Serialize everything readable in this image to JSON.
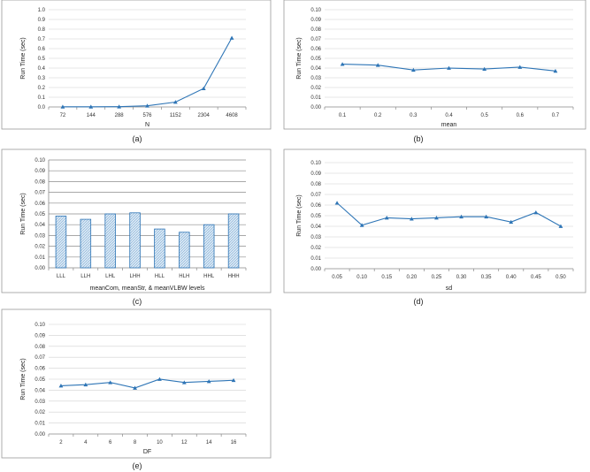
{
  "chart_data": [
    {
      "id": "a",
      "type": "line",
      "caption": "(a)",
      "categories": [
        "72",
        "144",
        "288",
        "576",
        "1152",
        "2304",
        "4608"
      ],
      "values": [
        0.002,
        0.002,
        0.003,
        0.012,
        0.05,
        0.19,
        0.71
      ],
      "xlabel": "N",
      "ylabel": "Run Time (sec)",
      "ylim": [
        0,
        1.0
      ],
      "yticks": [
        "0.0",
        "0.1",
        "0.2",
        "0.3",
        "0.4",
        "0.5",
        "0.6",
        "0.7",
        "0.8",
        "0.9",
        "1.0"
      ],
      "grid": true,
      "marker": "triangle",
      "color": "#2e75b6"
    },
    {
      "id": "b",
      "type": "line",
      "caption": "(b)",
      "categories": [
        "0.1",
        "0.2",
        "0.3",
        "0.4",
        "0.5",
        "0.6",
        "0.7"
      ],
      "values": [
        0.044,
        0.043,
        0.038,
        0.04,
        0.039,
        0.041,
        0.037
      ],
      "xlabel": "mean",
      "ylabel": "Run Time (sec)",
      "ylim": [
        0,
        0.1
      ],
      "yticks": [
        "0.00",
        "0.01",
        "0.02",
        "0.03",
        "0.04",
        "0.05",
        "0.06",
        "0.07",
        "0.08",
        "0.09",
        "0.10"
      ],
      "grid": true,
      "marker": "triangle",
      "color": "#2e75b6"
    },
    {
      "id": "c",
      "type": "bar",
      "caption": "(c)",
      "categories": [
        "LLL",
        "LLH",
        "LHL",
        "LHH",
        "HLL",
        "HLH",
        "HHL",
        "HHH"
      ],
      "values": [
        0.048,
        0.045,
        0.05,
        0.051,
        0.036,
        0.033,
        0.04,
        0.05
      ],
      "xlabel": "meanCom, meanStr, & meanVLBW levels",
      "ylabel": "Run Time (sec)",
      "ylim": [
        0,
        0.1
      ],
      "yticks": [
        "0.00",
        "0.01",
        "0.02",
        "0.03",
        "0.04",
        "0.05",
        "0.06",
        "0.07",
        "0.08",
        "0.09",
        "0.10"
      ],
      "grid": true,
      "color": "#2e75b6"
    },
    {
      "id": "d",
      "type": "line",
      "caption": "(d)",
      "categories": [
        "0.05",
        "0.10",
        "0.15",
        "0.20",
        "0.25",
        "0.30",
        "0.35",
        "0.40",
        "0.45",
        "0.50"
      ],
      "values": [
        0.062,
        0.041,
        0.048,
        0.047,
        0.048,
        0.049,
        0.049,
        0.044,
        0.053,
        0.04
      ],
      "xlabel": "sd",
      "ylabel": "Run Time (sec)",
      "ylim": [
        0,
        0.1
      ],
      "yticks": [
        "0.00",
        "0.01",
        "0.02",
        "0.03",
        "0.04",
        "0.05",
        "0.06",
        "0.07",
        "0.08",
        "0.09",
        "0.10"
      ],
      "grid": true,
      "marker": "triangle",
      "color": "#2e75b6"
    },
    {
      "id": "e",
      "type": "line",
      "caption": "(e)",
      "categories": [
        "2",
        "4",
        "6",
        "8",
        "10",
        "12",
        "14",
        "16"
      ],
      "values": [
        0.044,
        0.045,
        0.047,
        0.042,
        0.05,
        0.047,
        0.048,
        0.049
      ],
      "xlabel": "DF",
      "ylabel": "Run Time (sec)",
      "ylim": [
        0,
        0.1
      ],
      "yticks": [
        "0.00",
        "0.01",
        "0.02",
        "0.03",
        "0.04",
        "0.05",
        "0.06",
        "0.07",
        "0.08",
        "0.09",
        "0.10"
      ],
      "grid": true,
      "marker": "triangle",
      "color": "#2e75b6"
    }
  ]
}
